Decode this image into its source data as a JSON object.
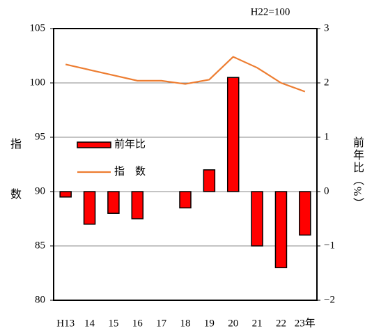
{
  "chart_data": {
    "type": "bar+line",
    "annotation": "H22=100",
    "ylabel": "指数",
    "y2label": "前年比（%）",
    "categories": [
      "H13",
      "14",
      "15",
      "16",
      "17",
      "18",
      "19",
      "20",
      "21",
      "22",
      "23年"
    ],
    "series": [
      {
        "name": "前年比",
        "type": "bar",
        "axis": "y2",
        "color": "#ff0000",
        "values": [
          -0.1,
          -0.6,
          -0.4,
          -0.5,
          0,
          -0.3,
          0.4,
          2.1,
          -1.0,
          -1.4,
          -0.8
        ]
      },
      {
        "name": "指　数",
        "type": "line",
        "color": "#ed7d31",
        "values": [
          101.7,
          101.2,
          100.7,
          100.2,
          100.2,
          99.9,
          100.3,
          102.4,
          101.4,
          100.0,
          99.2
        ]
      }
    ],
    "ylim": [
      80,
      105
    ],
    "yticks": [
      80,
      85,
      90,
      95,
      100,
      105
    ],
    "y2lim": [
      -2,
      3
    ],
    "y2ticks": [
      {
        "value": -2,
        "label": "−2"
      },
      {
        "value": -1,
        "label": "−1"
      },
      0,
      1,
      2,
      3
    ],
    "grid": true
  }
}
